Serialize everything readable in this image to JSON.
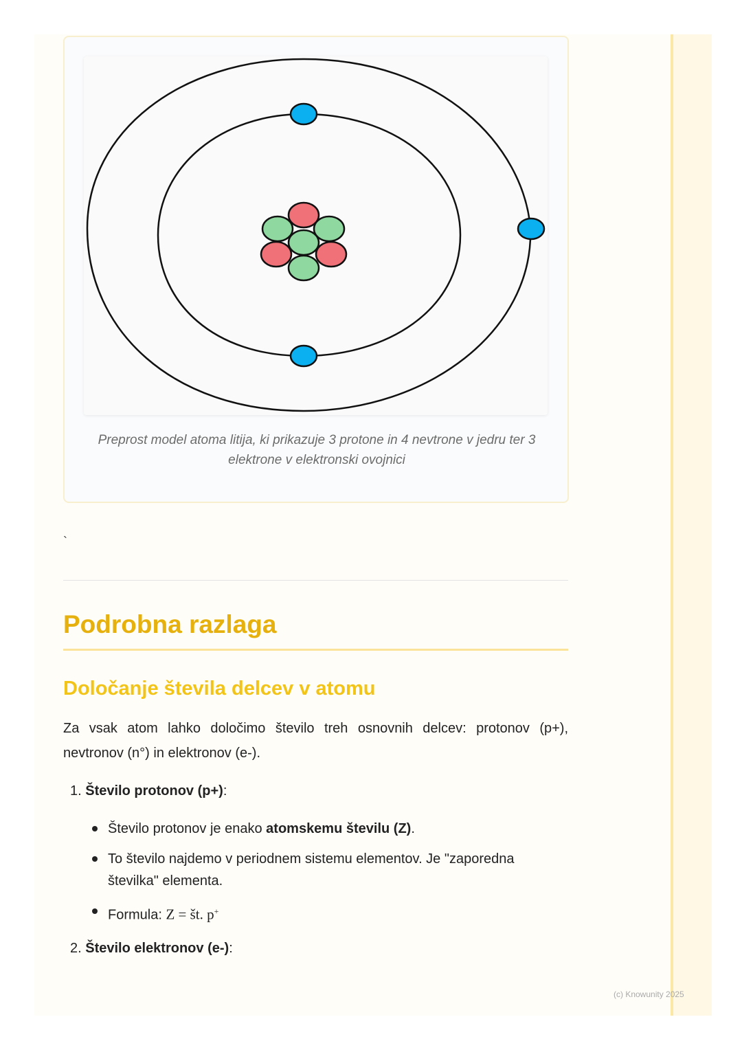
{
  "figure": {
    "caption": "Preprost model atoma litija, ki prikazuje 3 protone in 4 nevtrone v jedru ter 3 elektrone v elektronski ovojnici",
    "colors": {
      "proton": "#f07178",
      "neutron": "#8fd9a0",
      "electron": "#0ab0ef"
    }
  },
  "stray_mark": "`",
  "section": {
    "title": "Podrobna razlaga",
    "subtitle": "Določanje števila delcev v atomu",
    "intro": "Za vsak atom lahko določimo število treh osnovnih delcev: protonov (p+), nevtronov (n°) in elektronov (e-).",
    "items": [
      {
        "num": "1.",
        "label": "Število protonov (p+)",
        "colon": ":",
        "bullets": [
          {
            "pre": "Število protonov je enako ",
            "bold": "atomskemu številu (Z)",
            "post": "."
          },
          {
            "text": "To število najdemo v periodnem sistemu elementov. Je \"zaporedna številka\" elementa."
          },
          {
            "pre": "Formula: ",
            "formula": "Z = št. p",
            "sup": "+"
          }
        ]
      },
      {
        "num": "2.",
        "label": "Število elektronov (e-)",
        "colon": ":"
      }
    ]
  },
  "footer": {
    "copyright": "(c) Knowunity 2025"
  }
}
